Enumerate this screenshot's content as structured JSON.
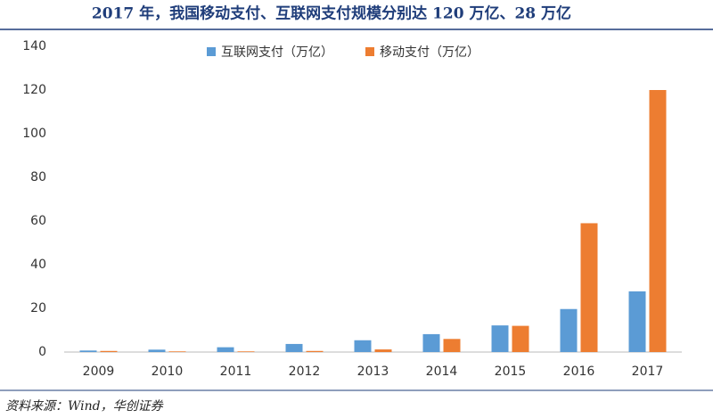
{
  "chart_data": {
    "type": "bar",
    "title": "2017 年，我国移动支付、互联网支付规模分别达 120 万亿、28 万亿",
    "source": "资料来源：Wind，华创证券",
    "categories": [
      "2009",
      "2010",
      "2011",
      "2012",
      "2013",
      "2014",
      "2015",
      "2016",
      "2017"
    ],
    "series": [
      {
        "name": "互联网支付（万亿）",
        "color": "#5b9bd5",
        "values": [
          0.7,
          1.1,
          2.2,
          3.7,
          5.4,
          8.2,
          12.2,
          19.7,
          27.8
        ]
      },
      {
        "name": "移动支付（万亿）",
        "color": "#ed7d31",
        "values": [
          0.5,
          0.3,
          0.3,
          0.5,
          1.2,
          6,
          12,
          59,
          120
        ]
      }
    ],
    "ylim": [
      0,
      140
    ],
    "yticks": [
      0,
      20,
      40,
      60,
      80,
      100,
      120,
      140
    ]
  }
}
